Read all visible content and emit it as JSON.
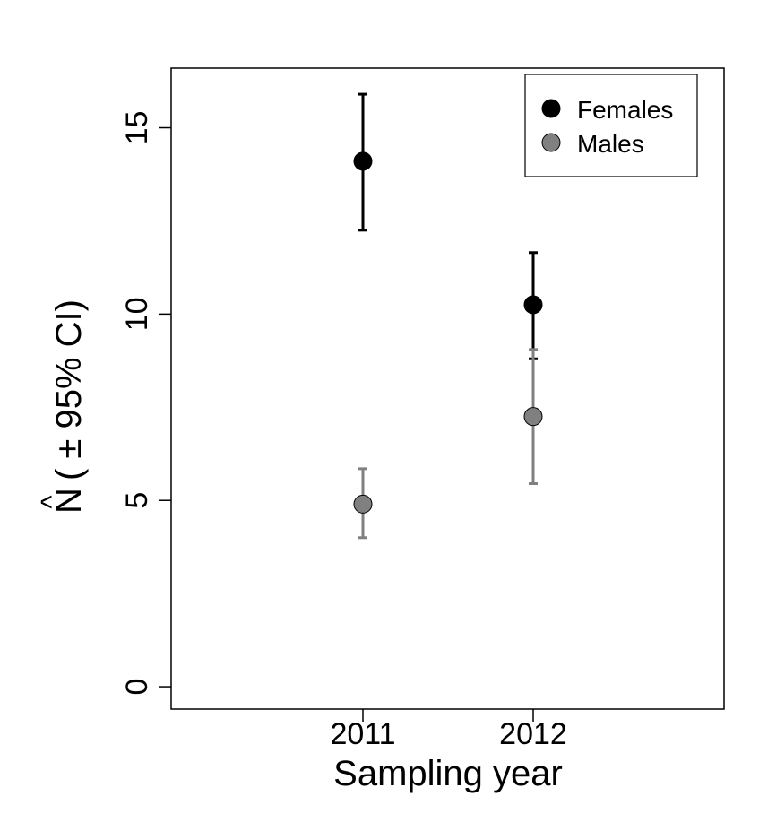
{
  "chart_data": {
    "type": "scatter",
    "xlabel": "Sampling year",
    "ylabel": {
      "symbol": "N",
      "hat": "^",
      "suffix": "( ± 95% CI)"
    },
    "categories": [
      "2011",
      "2012"
    ],
    "ylim": [
      -0.6,
      16.6
    ],
    "yticks": [
      "0",
      "5",
      "10",
      "15"
    ],
    "grid": false,
    "legend_position": "top-right",
    "series": [
      {
        "name": "Females",
        "color": "#000000",
        "values": [
          14.1,
          10.25
        ],
        "ci_low": [
          12.25,
          8.8
        ],
        "ci_high": [
          15.9,
          11.65
        ]
      },
      {
        "name": "Males",
        "color": "#808080",
        "values": [
          4.9,
          7.25
        ],
        "ci_low": [
          4.0,
          5.45
        ],
        "ci_high": [
          5.85,
          9.05
        ]
      }
    ]
  }
}
